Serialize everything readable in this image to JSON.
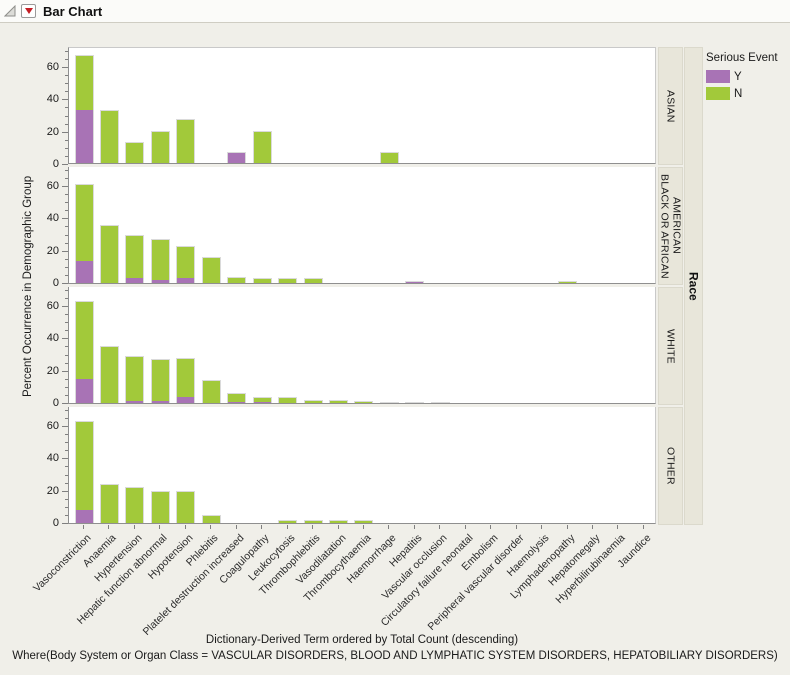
{
  "window": {
    "title": "Bar Chart"
  },
  "legend": {
    "title": "Serious Event",
    "items": [
      {
        "label": "Y",
        "color": "#A873B5"
      },
      {
        "label": "N",
        "color": "#A2C93A"
      }
    ]
  },
  "axes": {
    "y_title": "Percent Occurrence in Demographic Group",
    "x_title": "Dictionary-Derived Term ordered by Total Count (descending)",
    "facet_axis_title": "Race",
    "y_tick_labels": [
      0,
      20,
      40,
      60
    ],
    "y_minor_step": 5,
    "y_max": 72
  },
  "footnote": "Where(Body System or Organ Class = VASCULAR DISORDERS, BLOOD AND LYMPHATIC SYSTEM DISORDERS, HEPATOBILIARY DISORDERS)",
  "chart_data": {
    "type": "bar",
    "stacked": true,
    "orientation": "vertical",
    "title": "Bar Chart",
    "xlabel": "Dictionary-Derived Term ordered by Total Count (descending)",
    "ylabel": "Percent Occurrence in Demographic Group",
    "ylim": [
      0,
      72
    ],
    "legend_title": "Serious Event",
    "legend_position": "right",
    "series_colors": {
      "Y": "#A873B5",
      "N": "#A2C93A"
    },
    "categories": [
      "Vasoconstriction",
      "Anaemia",
      "Hypertension",
      "Hepatic function abnormal",
      "Hypotension",
      "Phlebitis",
      "Platelet destruction increased",
      "Coagulopathy",
      "Leukocytosis",
      "Thrombophlebitis",
      "Vasodilatation",
      "Thrombocythaemia",
      "Haemorrhage",
      "Hepatitis",
      "Vascular occlusion",
      "Circulatory failure neonatal",
      "Embolism",
      "Peripheral vascular disorder",
      "Haemolysis",
      "Lymphadenopathy",
      "Hepatomegaly",
      "Hyperbilirubinaemia",
      "Jaundice"
    ],
    "facets": [
      {
        "group": "ASIAN",
        "series": {
          "Y": [
            33,
            0,
            0,
            0,
            0,
            0,
            7,
            0,
            0,
            0,
            0,
            0,
            0,
            0,
            0,
            0,
            0,
            0,
            0,
            0,
            0,
            0,
            0
          ],
          "N": [
            34,
            33,
            13,
            20,
            27,
            0,
            0,
            20,
            0,
            0,
            0,
            0,
            7,
            0,
            0,
            0,
            0,
            0,
            0,
            0,
            0,
            0,
            0
          ]
        }
      },
      {
        "group": "BLACK OR AFRICAN AMERICAN",
        "series": {
          "Y": [
            14,
            0,
            3,
            2,
            3,
            0,
            0,
            0,
            0,
            0,
            0,
            0,
            0,
            1,
            0,
            0,
            0,
            0,
            0,
            0,
            0,
            0,
            0
          ],
          "N": [
            47,
            36,
            27,
            25,
            20,
            16,
            4,
            3,
            3,
            3,
            0,
            0,
            0,
            0,
            0,
            0,
            0,
            0,
            0,
            1,
            0,
            0,
            0
          ]
        }
      },
      {
        "group": "WHITE",
        "series": {
          "Y": [
            15,
            0,
            1,
            1,
            4,
            0,
            1,
            1,
            0,
            0,
            0,
            0,
            0,
            0,
            0.5,
            0,
            0,
            0,
            0,
            0,
            0,
            0,
            0
          ],
          "N": [
            48,
            35,
            28,
            26,
            24,
            14,
            5,
            3,
            4,
            2,
            2,
            1,
            0.5,
            0.5,
            0,
            0,
            0,
            0,
            0,
            0,
            0,
            0,
            0
          ]
        }
      },
      {
        "group": "OTHER",
        "series": {
          "Y": [
            8,
            0,
            0,
            0,
            0,
            0,
            0,
            0,
            0,
            0,
            0,
            0,
            0,
            0,
            0,
            0,
            0,
            0,
            0,
            0,
            0,
            0,
            0
          ],
          "N": [
            55,
            24,
            22,
            20,
            20,
            5,
            0,
            0,
            2,
            2,
            2,
            2,
            0,
            0,
            0,
            0,
            0,
            0,
            0,
            0,
            0,
            0,
            0
          ]
        }
      }
    ]
  }
}
